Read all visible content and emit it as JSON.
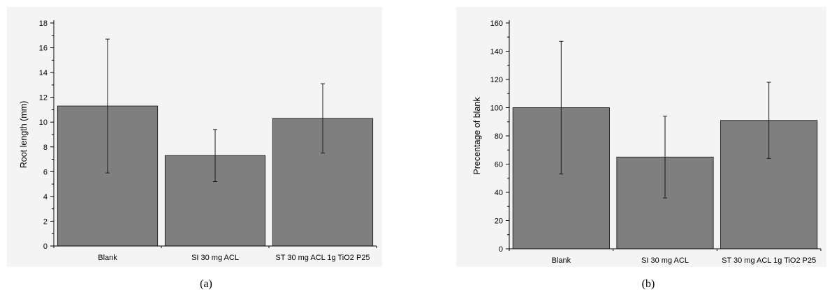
{
  "chart_data": [
    {
      "type": "bar",
      "categories": [
        "Blank",
        "SI 30 mg ACL",
        "ST 30 mg ACL 1g TiO2 P25"
      ],
      "values": [
        11.3,
        7.3,
        10.3
      ],
      "errors": [
        5.4,
        2.1,
        2.8
      ],
      "ylabel": "Root length (mm)",
      "xlabel": "",
      "ylim": [
        0,
        18
      ],
      "yticks": [
        0,
        2,
        4,
        6,
        8,
        10,
        12,
        14,
        16,
        18
      ],
      "caption": "(a)",
      "colors": {
        "bar": "#7f7f7f",
        "edge": "#2b2b2b",
        "background": "#f4f4f4"
      },
      "grid": false
    },
    {
      "type": "bar",
      "categories": [
        "Blank",
        "SI 30 mg ACL",
        "ST 30 mg ACL 1g TiO2 P25"
      ],
      "values": [
        100,
        65,
        91
      ],
      "errors": [
        47,
        29,
        27
      ],
      "ylabel": "Precentage of blank",
      "xlabel": "",
      "ylim": [
        0,
        160
      ],
      "yticks": [
        0,
        20,
        40,
        60,
        80,
        100,
        120,
        140,
        160
      ],
      "caption": "(b)",
      "colors": {
        "bar": "#7f7f7f",
        "edge": "#2b2b2b",
        "background": "#f4f4f4"
      },
      "grid": false
    }
  ]
}
